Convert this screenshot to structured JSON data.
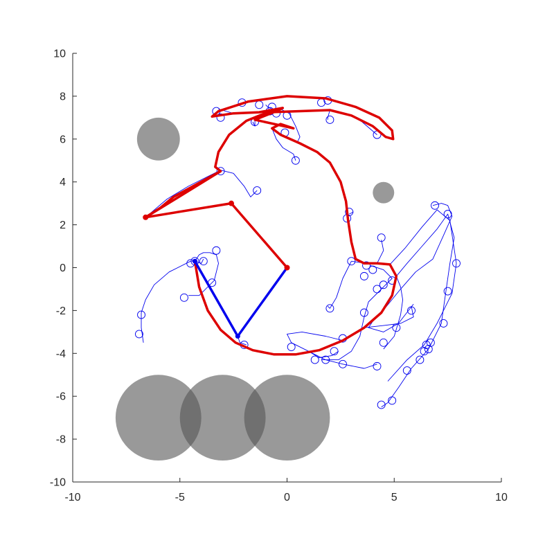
{
  "chart_data": {
    "type": "line",
    "title": "",
    "xlabel": "",
    "ylabel": "",
    "xlim": [
      -10,
      10
    ],
    "ylim": [
      -10,
      10
    ],
    "grid": false,
    "box": false,
    "xticks": [
      "-10",
      "-5",
      "0",
      "5",
      "10"
    ],
    "yticks": [
      "-10",
      "-8",
      "-6",
      "-4",
      "-2",
      "0",
      "2",
      "4",
      "6",
      "8",
      "10"
    ],
    "colors": {
      "obstacle": "#555555",
      "arm_initial": "#0000ee",
      "arm_final": "#dd0000",
      "trajectory": "#0000ee",
      "sample": "#0000ee",
      "axis": "#262626"
    },
    "obstacles": [
      {
        "cx": -6.0,
        "cy": 6.0,
        "r": 1.0
      },
      {
        "cx": 4.5,
        "cy": 3.5,
        "r": 0.5
      },
      {
        "cx": -6.0,
        "cy": -7.0,
        "r": 2.0
      },
      {
        "cx": -3.0,
        "cy": -7.0,
        "r": 2.0
      },
      {
        "cx": 0.0,
        "cy": -7.0,
        "r": 2.0
      }
    ],
    "initial_arm": [
      [
        0,
        0
      ],
      [
        -2.3,
        -3.2
      ],
      [
        -4.3,
        0.3
      ]
    ],
    "final_arm": [
      [
        0,
        0
      ],
      [
        -2.6,
        3.0
      ],
      [
        -6.6,
        2.35
      ],
      [
        -3.1,
        4.5
      ]
    ],
    "end_effector_path": [
      [
        -4.3,
        0.3
      ],
      [
        -4.1,
        -0.9
      ],
      [
        -3.7,
        -2.0
      ],
      [
        -3.1,
        -2.9
      ],
      [
        -2.4,
        -3.5
      ],
      [
        -1.6,
        -3.85
      ],
      [
        -0.6,
        -4.05
      ],
      [
        0.4,
        -4.05
      ],
      [
        1.5,
        -3.85
      ],
      [
        2.6,
        -3.4
      ],
      [
        3.6,
        -2.8
      ],
      [
        4.4,
        -2.1
      ],
      [
        4.9,
        -1.3
      ],
      [
        5.1,
        -0.4
      ],
      [
        4.8,
        0.15
      ],
      [
        4.2,
        0.2
      ],
      [
        3.6,
        0.2
      ],
      [
        3.2,
        0.4
      ],
      [
        3.0,
        1.2
      ],
      [
        2.85,
        2.2
      ],
      [
        2.75,
        3.1
      ],
      [
        2.5,
        4.0
      ],
      [
        2.0,
        4.9
      ],
      [
        1.4,
        5.4
      ],
      [
        0.6,
        5.8
      ],
      [
        -0.3,
        6.2
      ],
      [
        -0.7,
        6.5
      ],
      [
        -0.3,
        6.7
      ],
      [
        0.3,
        6.5
      ],
      [
        -0.6,
        6.7
      ],
      [
        -1.5,
        6.9
      ],
      [
        -0.5,
        7.3
      ],
      [
        -0.2,
        7.45
      ],
      [
        -1.3,
        7.25
      ],
      [
        -2.5,
        7.2
      ],
      [
        -3.5,
        7.05
      ],
      [
        -3.2,
        7.3
      ],
      [
        -1.8,
        7.75
      ],
      [
        0.0,
        8.0
      ],
      [
        1.8,
        7.9
      ],
      [
        3.2,
        7.5
      ],
      [
        4.3,
        7.0
      ],
      [
        4.9,
        6.4
      ],
      [
        4.95,
        6.0
      ],
      [
        4.6,
        6.1
      ],
      [
        4.0,
        6.6
      ],
      [
        3.0,
        7.1
      ],
      [
        2.0,
        7.35
      ],
      [
        0.5,
        7.3
      ],
      [
        -0.9,
        7.25
      ],
      [
        -1.9,
        6.85
      ],
      [
        -2.7,
        6.2
      ],
      [
        -3.2,
        5.4
      ],
      [
        -3.35,
        4.7
      ],
      [
        -3.1,
        4.5
      ],
      [
        -4.2,
        3.9
      ],
      [
        -5.3,
        3.3
      ],
      [
        -5.9,
        2.8
      ],
      [
        -6.6,
        2.35
      ]
    ],
    "trajectories": [
      [
        [
          -4.3,
          0.3
        ],
        [
          -4.1,
          0.6
        ],
        [
          -3.9,
          0.7
        ],
        [
          -3.6,
          0.7
        ],
        [
          -3.3,
          0.6
        ],
        [
          -3.2,
          0.2
        ],
        [
          -3.4,
          -0.6
        ],
        [
          -4.1,
          -1.3
        ],
        [
          -4.6,
          -1.3
        ]
      ],
      [
        [
          -4.3,
          0.3
        ],
        [
          -4.5,
          0.3
        ],
        [
          -5.5,
          -0.2
        ],
        [
          -6.2,
          -0.8
        ],
        [
          -6.6,
          -1.5
        ],
        [
          -6.8,
          -2.1
        ],
        [
          -6.8,
          -2.8
        ],
        [
          -6.7,
          -3.5
        ]
      ],
      [
        [
          -4.3,
          0.3
        ],
        [
          -4.0,
          0.2
        ],
        [
          -3.9,
          0.4
        ]
      ],
      [
        [
          -6.6,
          2.35
        ],
        [
          -5.6,
          3.2
        ],
        [
          -4.6,
          3.8
        ],
        [
          -3.6,
          4.3
        ],
        [
          -3.1,
          4.55
        ],
        [
          -2.5,
          4.4
        ],
        [
          -2.0,
          3.8
        ],
        [
          -1.7,
          3.3
        ],
        [
          -1.4,
          3.6
        ]
      ],
      [
        [
          -2.3,
          -3.2
        ],
        [
          -2.2,
          -3.5
        ],
        [
          -1.9,
          -3.6
        ]
      ],
      [
        [
          2.6,
          -3.4
        ],
        [
          1.8,
          -3.2
        ],
        [
          0.7,
          -3.0
        ],
        [
          0.0,
          -3.1
        ],
        [
          0.2,
          -3.5
        ],
        [
          1.0,
          -3.9
        ],
        [
          1.8,
          -4.3
        ],
        [
          2.6,
          -4.5
        ],
        [
          3.6,
          -4.7
        ],
        [
          4.2,
          -4.5
        ]
      ],
      [
        [
          4.4,
          -2.1
        ],
        [
          5.3,
          -1.0
        ],
        [
          6.0,
          -0.2
        ],
        [
          6.8,
          0.4
        ],
        [
          7.3,
          1.5
        ],
        [
          7.7,
          2.4
        ],
        [
          7.5,
          2.9
        ],
        [
          7.2,
          3.0
        ],
        [
          6.8,
          2.9
        ]
      ],
      [
        [
          5.1,
          -0.4
        ],
        [
          5.6,
          0.2
        ],
        [
          6.3,
          1.0
        ],
        [
          7.0,
          1.8
        ],
        [
          7.5,
          2.5
        ],
        [
          7.8,
          1.4
        ],
        [
          7.6,
          0.2
        ],
        [
          7.4,
          -1.2
        ],
        [
          7.2,
          -2.6
        ],
        [
          6.6,
          -3.8
        ],
        [
          5.8,
          -4.7
        ],
        [
          5.2,
          -5.6
        ],
        [
          4.7,
          -6.3
        ],
        [
          4.4,
          -6.5
        ]
      ],
      [
        [
          4.8,
          0.15
        ],
        [
          5.5,
          0.9
        ],
        [
          6.3,
          1.9
        ],
        [
          7.0,
          2.7
        ],
        [
          7.6,
          2.2
        ],
        [
          7.9,
          0.2
        ],
        [
          7.7,
          -1.2
        ],
        [
          7.0,
          -2.6
        ],
        [
          6.4,
          -3.6
        ],
        [
          5.6,
          -4.3
        ],
        [
          4.7,
          -5.3
        ]
      ],
      [
        [
          3.9,
          0.1
        ],
        [
          4.5,
          -0.1
        ],
        [
          4.9,
          -0.5
        ],
        [
          4.4,
          -1.0
        ],
        [
          3.8,
          -1.6
        ],
        [
          3.6,
          -2.3
        ],
        [
          3.4,
          -3.2
        ],
        [
          3.0,
          -3.9
        ],
        [
          2.4,
          -4.3
        ],
        [
          1.6,
          -4.3
        ]
      ],
      [
        [
          2.9,
          2.5
        ],
        [
          3.1,
          2.6
        ]
      ],
      [
        [
          3.0,
          0.3
        ],
        [
          3.7,
          0.2
        ],
        [
          4.2,
          0.2
        ],
        [
          4.5,
          0.8
        ],
        [
          4.4,
          1.3
        ]
      ],
      [
        [
          3.0,
          0.3
        ],
        [
          2.6,
          -0.5
        ],
        [
          2.3,
          -1.4
        ],
        [
          2.0,
          -1.9
        ],
        [
          1.9,
          -1.8
        ]
      ],
      [
        [
          5.1,
          -0.4
        ],
        [
          5.3,
          -0.9
        ],
        [
          5.4,
          -1.5
        ],
        [
          5.3,
          -2.2
        ],
        [
          5.0,
          -3.2
        ],
        [
          4.5,
          -3.8
        ]
      ],
      [
        [
          3.6,
          -2.8
        ],
        [
          4.5,
          -2.7
        ],
        [
          5.3,
          -2.6
        ],
        [
          5.9,
          -2.3
        ],
        [
          5.8,
          -1.8
        ]
      ],
      [
        [
          4.4,
          -2.1
        ],
        [
          4.0,
          -2.5
        ],
        [
          3.8,
          -2.8
        ],
        [
          4.5,
          -3.0
        ],
        [
          5.2,
          -2.6
        ],
        [
          5.9,
          -1.7
        ]
      ],
      [
        [
          1.0,
          -3.9
        ],
        [
          1.5,
          -4.2
        ],
        [
          2.1,
          -4.1
        ],
        [
          2.4,
          -3.9
        ]
      ],
      [
        [
          -0.7,
          6.5
        ],
        [
          -0.5,
          6.0
        ],
        [
          -0.2,
          5.6
        ],
        [
          0.3,
          5.3
        ],
        [
          0.4,
          5.0
        ]
      ],
      [
        [
          -1.5,
          6.9
        ],
        [
          -1.5,
          6.6
        ],
        [
          -1.6,
          6.8
        ]
      ],
      [
        [
          -0.4,
          7.45
        ],
        [
          0.1,
          7.2
        ],
        [
          0.4,
          6.6
        ],
        [
          0.6,
          6.1
        ],
        [
          0.5,
          5.9
        ]
      ],
      [
        [
          -0.5,
          7.3
        ],
        [
          -0.9,
          7.5
        ],
        [
          -1.0,
          7.6
        ]
      ],
      [
        [
          2.0,
          7.35
        ],
        [
          1.9,
          7.0
        ],
        [
          1.9,
          6.9
        ]
      ],
      [
        [
          3.0,
          7.1
        ],
        [
          3.5,
          6.8
        ],
        [
          4.2,
          6.2
        ]
      ],
      [
        [
          -3.5,
          7.05
        ],
        [
          -3.3,
          7.15
        ]
      ],
      [
        [
          -2.5,
          7.2
        ],
        [
          -3.2,
          7.4
        ]
      ]
    ],
    "samples": [
      [
        -3.3,
        0.8
      ],
      [
        -3.5,
        -0.7
      ],
      [
        -4.8,
        -1.4
      ],
      [
        -4.5,
        0.2
      ],
      [
        -3.9,
        0.3
      ],
      [
        -4.3,
        0.3
      ],
      [
        -6.8,
        -2.2
      ],
      [
        -6.9,
        -3.1
      ],
      [
        -2.0,
        -3.6
      ],
      [
        -1.4,
        3.6
      ],
      [
        -3.1,
        4.5
      ],
      [
        -3.3,
        7.3
      ],
      [
        -3.1,
        7.0
      ],
      [
        -2.1,
        7.7
      ],
      [
        -1.5,
        6.8
      ],
      [
        -1.3,
        7.6
      ],
      [
        -0.8,
        7.3
      ],
      [
        -0.7,
        7.5
      ],
      [
        -0.5,
        7.2
      ],
      [
        0.0,
        7.1
      ],
      [
        -0.1,
        6.3
      ],
      [
        0.4,
        5.0
      ],
      [
        1.6,
        7.7
      ],
      [
        1.9,
        7.8
      ],
      [
        2.0,
        6.9
      ],
      [
        4.2,
        6.2
      ],
      [
        2.9,
        2.6
      ],
      [
        2.8,
        2.3
      ],
      [
        3.0,
        0.3
      ],
      [
        3.7,
        0.1
      ],
      [
        3.6,
        -0.4
      ],
      [
        4.0,
        -0.1
      ],
      [
        4.4,
        1.4
      ],
      [
        4.2,
        -1.0
      ],
      [
        4.5,
        -0.8
      ],
      [
        4.9,
        -0.6
      ],
      [
        3.6,
        -2.1
      ],
      [
        2.0,
        -1.9
      ],
      [
        0.2,
        -3.7
      ],
      [
        1.3,
        -4.3
      ],
      [
        1.8,
        -4.3
      ],
      [
        2.2,
        -3.9
      ],
      [
        2.6,
        -3.3
      ],
      [
        2.6,
        -4.5
      ],
      [
        4.2,
        -4.6
      ],
      [
        4.5,
        -3.5
      ],
      [
        5.1,
        -2.8
      ],
      [
        5.8,
        -2.0
      ],
      [
        6.9,
        2.9
      ],
      [
        7.5,
        2.5
      ],
      [
        7.9,
        0.2
      ],
      [
        7.5,
        -1.1
      ],
      [
        7.3,
        -2.6
      ],
      [
        6.7,
        -3.5
      ],
      [
        6.6,
        -3.8
      ],
      [
        6.5,
        -3.6
      ],
      [
        6.4,
        -3.9
      ],
      [
        6.2,
        -4.3
      ],
      [
        5.6,
        -4.8
      ],
      [
        4.9,
        -6.2
      ],
      [
        4.4,
        -6.4
      ]
    ],
    "final_joints": [
      [
        0,
        0
      ],
      [
        -2.6,
        3.0
      ],
      [
        -6.6,
        2.35
      ]
    ],
    "initial_joints": [
      [
        -2.3,
        -3.2
      ],
      [
        -4.3,
        0.3
      ]
    ]
  }
}
